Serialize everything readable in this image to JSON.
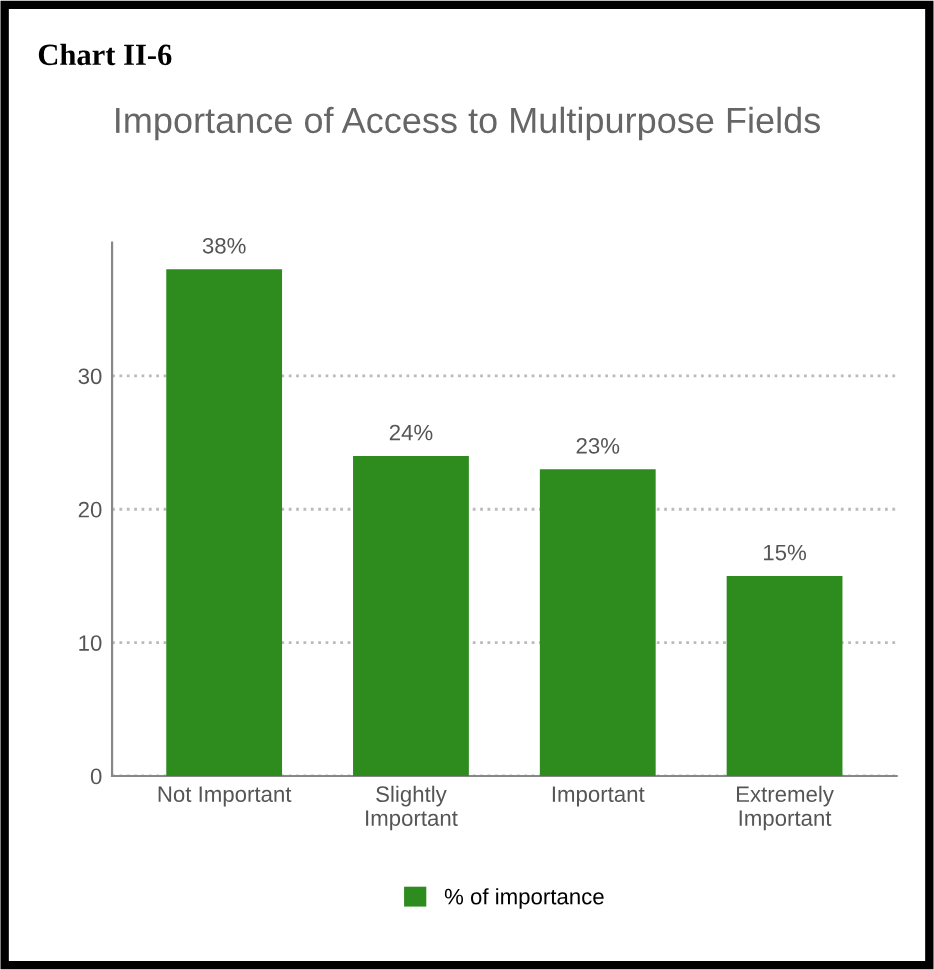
{
  "chart_data": {
    "type": "bar",
    "title": "Chart II-6",
    "subtitle": "Importance of Access to Multipurpose Fields",
    "categories": [
      "Not Important",
      "Slightly\nImportant",
      "Important",
      "Extremely\nImportant"
    ],
    "series": [
      {
        "name": "% of importance",
        "color": "#2e8b1e",
        "values": [
          38,
          24,
          23,
          15
        ],
        "value_labels": [
          "38%",
          "24%",
          "23%",
          "15%"
        ]
      }
    ],
    "ylim": [
      0,
      40
    ],
    "yticks": [
      0,
      10,
      20,
      30
    ],
    "grid": "y",
    "legend": "bottom"
  }
}
